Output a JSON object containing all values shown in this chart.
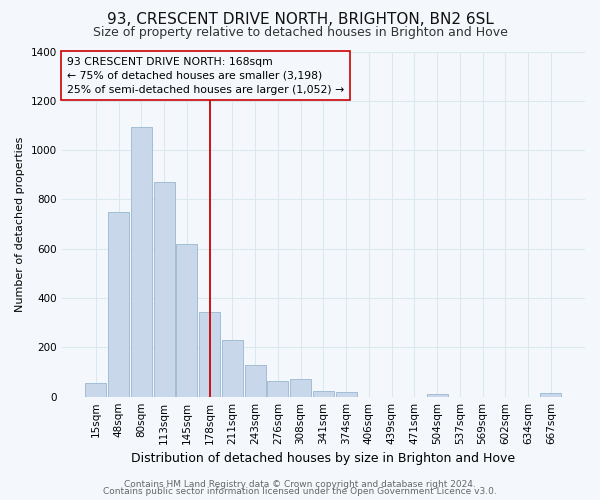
{
  "title": "93, CRESCENT DRIVE NORTH, BRIGHTON, BN2 6SL",
  "subtitle": "Size of property relative to detached houses in Brighton and Hove",
  "xlabel": "Distribution of detached houses by size in Brighton and Hove",
  "ylabel": "Number of detached properties",
  "bar_labels": [
    "15sqm",
    "48sqm",
    "80sqm",
    "113sqm",
    "145sqm",
    "178sqm",
    "211sqm",
    "243sqm",
    "276sqm",
    "308sqm",
    "341sqm",
    "374sqm",
    "406sqm",
    "439sqm",
    "471sqm",
    "504sqm",
    "537sqm",
    "569sqm",
    "602sqm",
    "634sqm",
    "667sqm"
  ],
  "bar_values": [
    55,
    750,
    1095,
    870,
    620,
    345,
    230,
    130,
    65,
    70,
    25,
    18,
    0,
    0,
    0,
    12,
    0,
    0,
    0,
    0,
    15
  ],
  "bar_color": "#c8d8ea",
  "bar_edge_color": "#9ab8d0",
  "vline_bar_index": 5,
  "vline_color": "#cc0000",
  "annotation_line1": "93 CRESCENT DRIVE NORTH: 168sqm",
  "annotation_line2": "← 75% of detached houses are smaller (3,198)",
  "annotation_line3": "25% of semi-detached houses are larger (1,052) →",
  "annotation_box_edge_color": "#cc0000",
  "ylim": [
    0,
    1400
  ],
  "yticks": [
    0,
    200,
    400,
    600,
    800,
    1000,
    1200,
    1400
  ],
  "footer_line1": "Contains HM Land Registry data © Crown copyright and database right 2024.",
  "footer_line2": "Contains public sector information licensed under the Open Government Licence v3.0.",
  "bg_color": "#f4f8fc",
  "grid_color": "#dce8f0",
  "title_fontsize": 11,
  "subtitle_fontsize": 9,
  "xlabel_fontsize": 9,
  "ylabel_fontsize": 8,
  "tick_fontsize": 7.5,
  "footer_fontsize": 6.5
}
